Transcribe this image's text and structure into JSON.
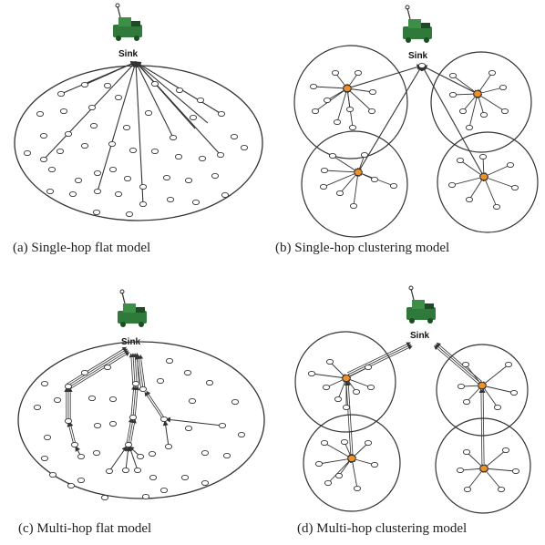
{
  "sink_label": "Sink",
  "colors": {
    "line": "#333333",
    "node_fill": "#ffffff",
    "cluster_head": "#f0902a",
    "sink_body": "#2f7a3a",
    "sink_dark": "#1b4d24"
  },
  "icons": {
    "sink": "sink-base-station-icon",
    "node": "sensor-node-icon",
    "cluster_head": "cluster-head-icon"
  },
  "panels": [
    {
      "id": "a",
      "caption": "(a) Single-hop flat model"
    },
    {
      "id": "b",
      "caption": "(b) Single-hop clustering model"
    },
    {
      "id": "c",
      "caption": "(c) Multi-hop flat model"
    },
    {
      "id": "d",
      "caption": "(d) Multi-hop clustering model"
    }
  ]
}
